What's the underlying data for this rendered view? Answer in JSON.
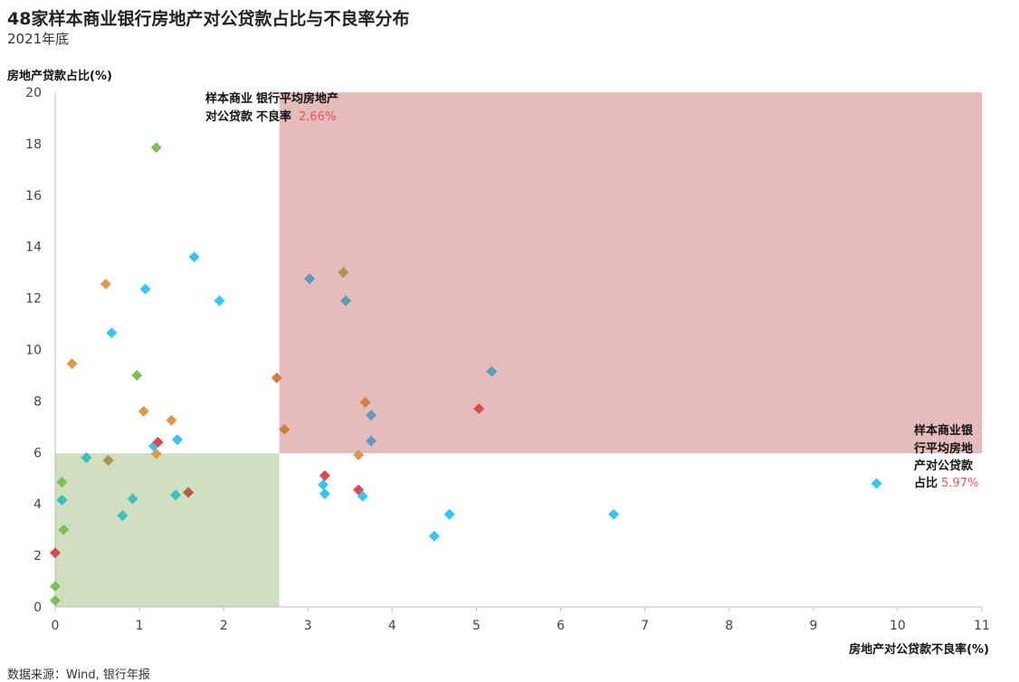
{
  "title": "48家样本商业银行房地产对公贷款占比与不良率分布",
  "subtitle": "2021年底",
  "source": "数据来源：Wind, 银行年报",
  "colors": {
    "blue": "#34c6f4",
    "slate": "#5f9bbf",
    "teal": "#3dbfbd",
    "green": "#7cc155",
    "orange": "#e2974e",
    "brownorange": "#d47f3e",
    "olive": "#a89545",
    "red": "#de4a4a",
    "dark_red": "#b85a4a",
    "quadrant_high": "#e5bcbc",
    "quadrant_low": "#cfdfc0"
  },
  "chart_data": {
    "type": "scatter",
    "title": "48家样本商业银行房地产对公贷款占比与不良率分布",
    "subtitle": "2021年底",
    "xlabel": "房地产对公贷款不良率(%)",
    "ylabel": "房地产贷款占比(%)",
    "xlim": [
      0,
      11
    ],
    "ylim": [
      0,
      20
    ],
    "xticks": [
      "0",
      "1",
      "2",
      "3",
      "4",
      "5",
      "6",
      "7",
      "8",
      "9",
      "10",
      "11"
    ],
    "yticks": [
      "0",
      "2",
      "4",
      "6",
      "8",
      "10",
      "12",
      "14",
      "16",
      "18",
      "20"
    ],
    "grid": false,
    "legend": "none",
    "reference": {
      "avg_npl": 2.66,
      "avg_share": 5.97,
      "avg_npl_label_lines": [
        "样本商业",
        "银行平均房地产",
        "对公贷款",
        "不良率"
      ],
      "avg_npl_value": "2.66%",
      "avg_share_label_lines": [
        "样本商业银",
        "行平均房地",
        "产对公贷款",
        "占比"
      ],
      "avg_share_value": "5.97%"
    },
    "points": [
      {
        "x": 0.0,
        "y": 0.25,
        "color": "green"
      },
      {
        "x": 0.0,
        "y": 0.8,
        "color": "green"
      },
      {
        "x": 0.0,
        "y": 2.1,
        "color": "red"
      },
      {
        "x": 0.1,
        "y": 3.0,
        "color": "green"
      },
      {
        "x": 0.08,
        "y": 4.15,
        "color": "teal"
      },
      {
        "x": 0.08,
        "y": 4.85,
        "color": "green"
      },
      {
        "x": 0.2,
        "y": 9.45,
        "color": "orange"
      },
      {
        "x": 0.37,
        "y": 5.8,
        "color": "teal"
      },
      {
        "x": 0.6,
        "y": 12.55,
        "color": "orange"
      },
      {
        "x": 0.63,
        "y": 5.7,
        "color": "olive"
      },
      {
        "x": 0.67,
        "y": 10.65,
        "color": "blue"
      },
      {
        "x": 0.8,
        "y": 3.55,
        "color": "teal"
      },
      {
        "x": 0.92,
        "y": 4.2,
        "color": "teal"
      },
      {
        "x": 0.97,
        "y": 9.0,
        "color": "green"
      },
      {
        "x": 1.05,
        "y": 7.6,
        "color": "orange"
      },
      {
        "x": 1.07,
        "y": 12.35,
        "color": "blue"
      },
      {
        "x": 1.17,
        "y": 6.25,
        "color": "blue"
      },
      {
        "x": 1.2,
        "y": 17.85,
        "color": "green"
      },
      {
        "x": 1.22,
        "y": 6.4,
        "color": "red"
      },
      {
        "x": 1.2,
        "y": 5.95,
        "color": "orange"
      },
      {
        "x": 1.38,
        "y": 7.25,
        "color": "orange"
      },
      {
        "x": 1.43,
        "y": 4.35,
        "color": "teal"
      },
      {
        "x": 1.45,
        "y": 6.5,
        "color": "blue"
      },
      {
        "x": 1.58,
        "y": 4.45,
        "color": "dark_red"
      },
      {
        "x": 1.65,
        "y": 13.6,
        "color": "blue"
      },
      {
        "x": 1.95,
        "y": 11.9,
        "color": "blue"
      },
      {
        "x": 2.63,
        "y": 8.9,
        "color": "brownorange"
      },
      {
        "x": 2.72,
        "y": 6.9,
        "color": "brownorange"
      },
      {
        "x": 3.02,
        "y": 12.75,
        "color": "slate"
      },
      {
        "x": 3.18,
        "y": 4.75,
        "color": "blue"
      },
      {
        "x": 3.2,
        "y": 5.1,
        "color": "red"
      },
      {
        "x": 3.2,
        "y": 4.4,
        "color": "blue"
      },
      {
        "x": 3.42,
        "y": 13.0,
        "color": "olive"
      },
      {
        "x": 3.45,
        "y": 11.9,
        "color": "slate"
      },
      {
        "x": 3.6,
        "y": 4.55,
        "color": "red"
      },
      {
        "x": 3.6,
        "y": 5.9,
        "color": "orange"
      },
      {
        "x": 3.65,
        "y": 4.3,
        "color": "blue"
      },
      {
        "x": 3.68,
        "y": 7.95,
        "color": "brownorange"
      },
      {
        "x": 3.75,
        "y": 7.45,
        "color": "slate"
      },
      {
        "x": 3.75,
        "y": 6.45,
        "color": "slate"
      },
      {
        "x": 4.5,
        "y": 2.75,
        "color": "blue"
      },
      {
        "x": 4.68,
        "y": 3.6,
        "color": "blue"
      },
      {
        "x": 5.03,
        "y": 7.7,
        "color": "red"
      },
      {
        "x": 5.18,
        "y": 9.15,
        "color": "slate"
      },
      {
        "x": 6.63,
        "y": 3.6,
        "color": "blue"
      },
      {
        "x": 9.75,
        "y": 4.8,
        "color": "blue"
      }
    ]
  }
}
